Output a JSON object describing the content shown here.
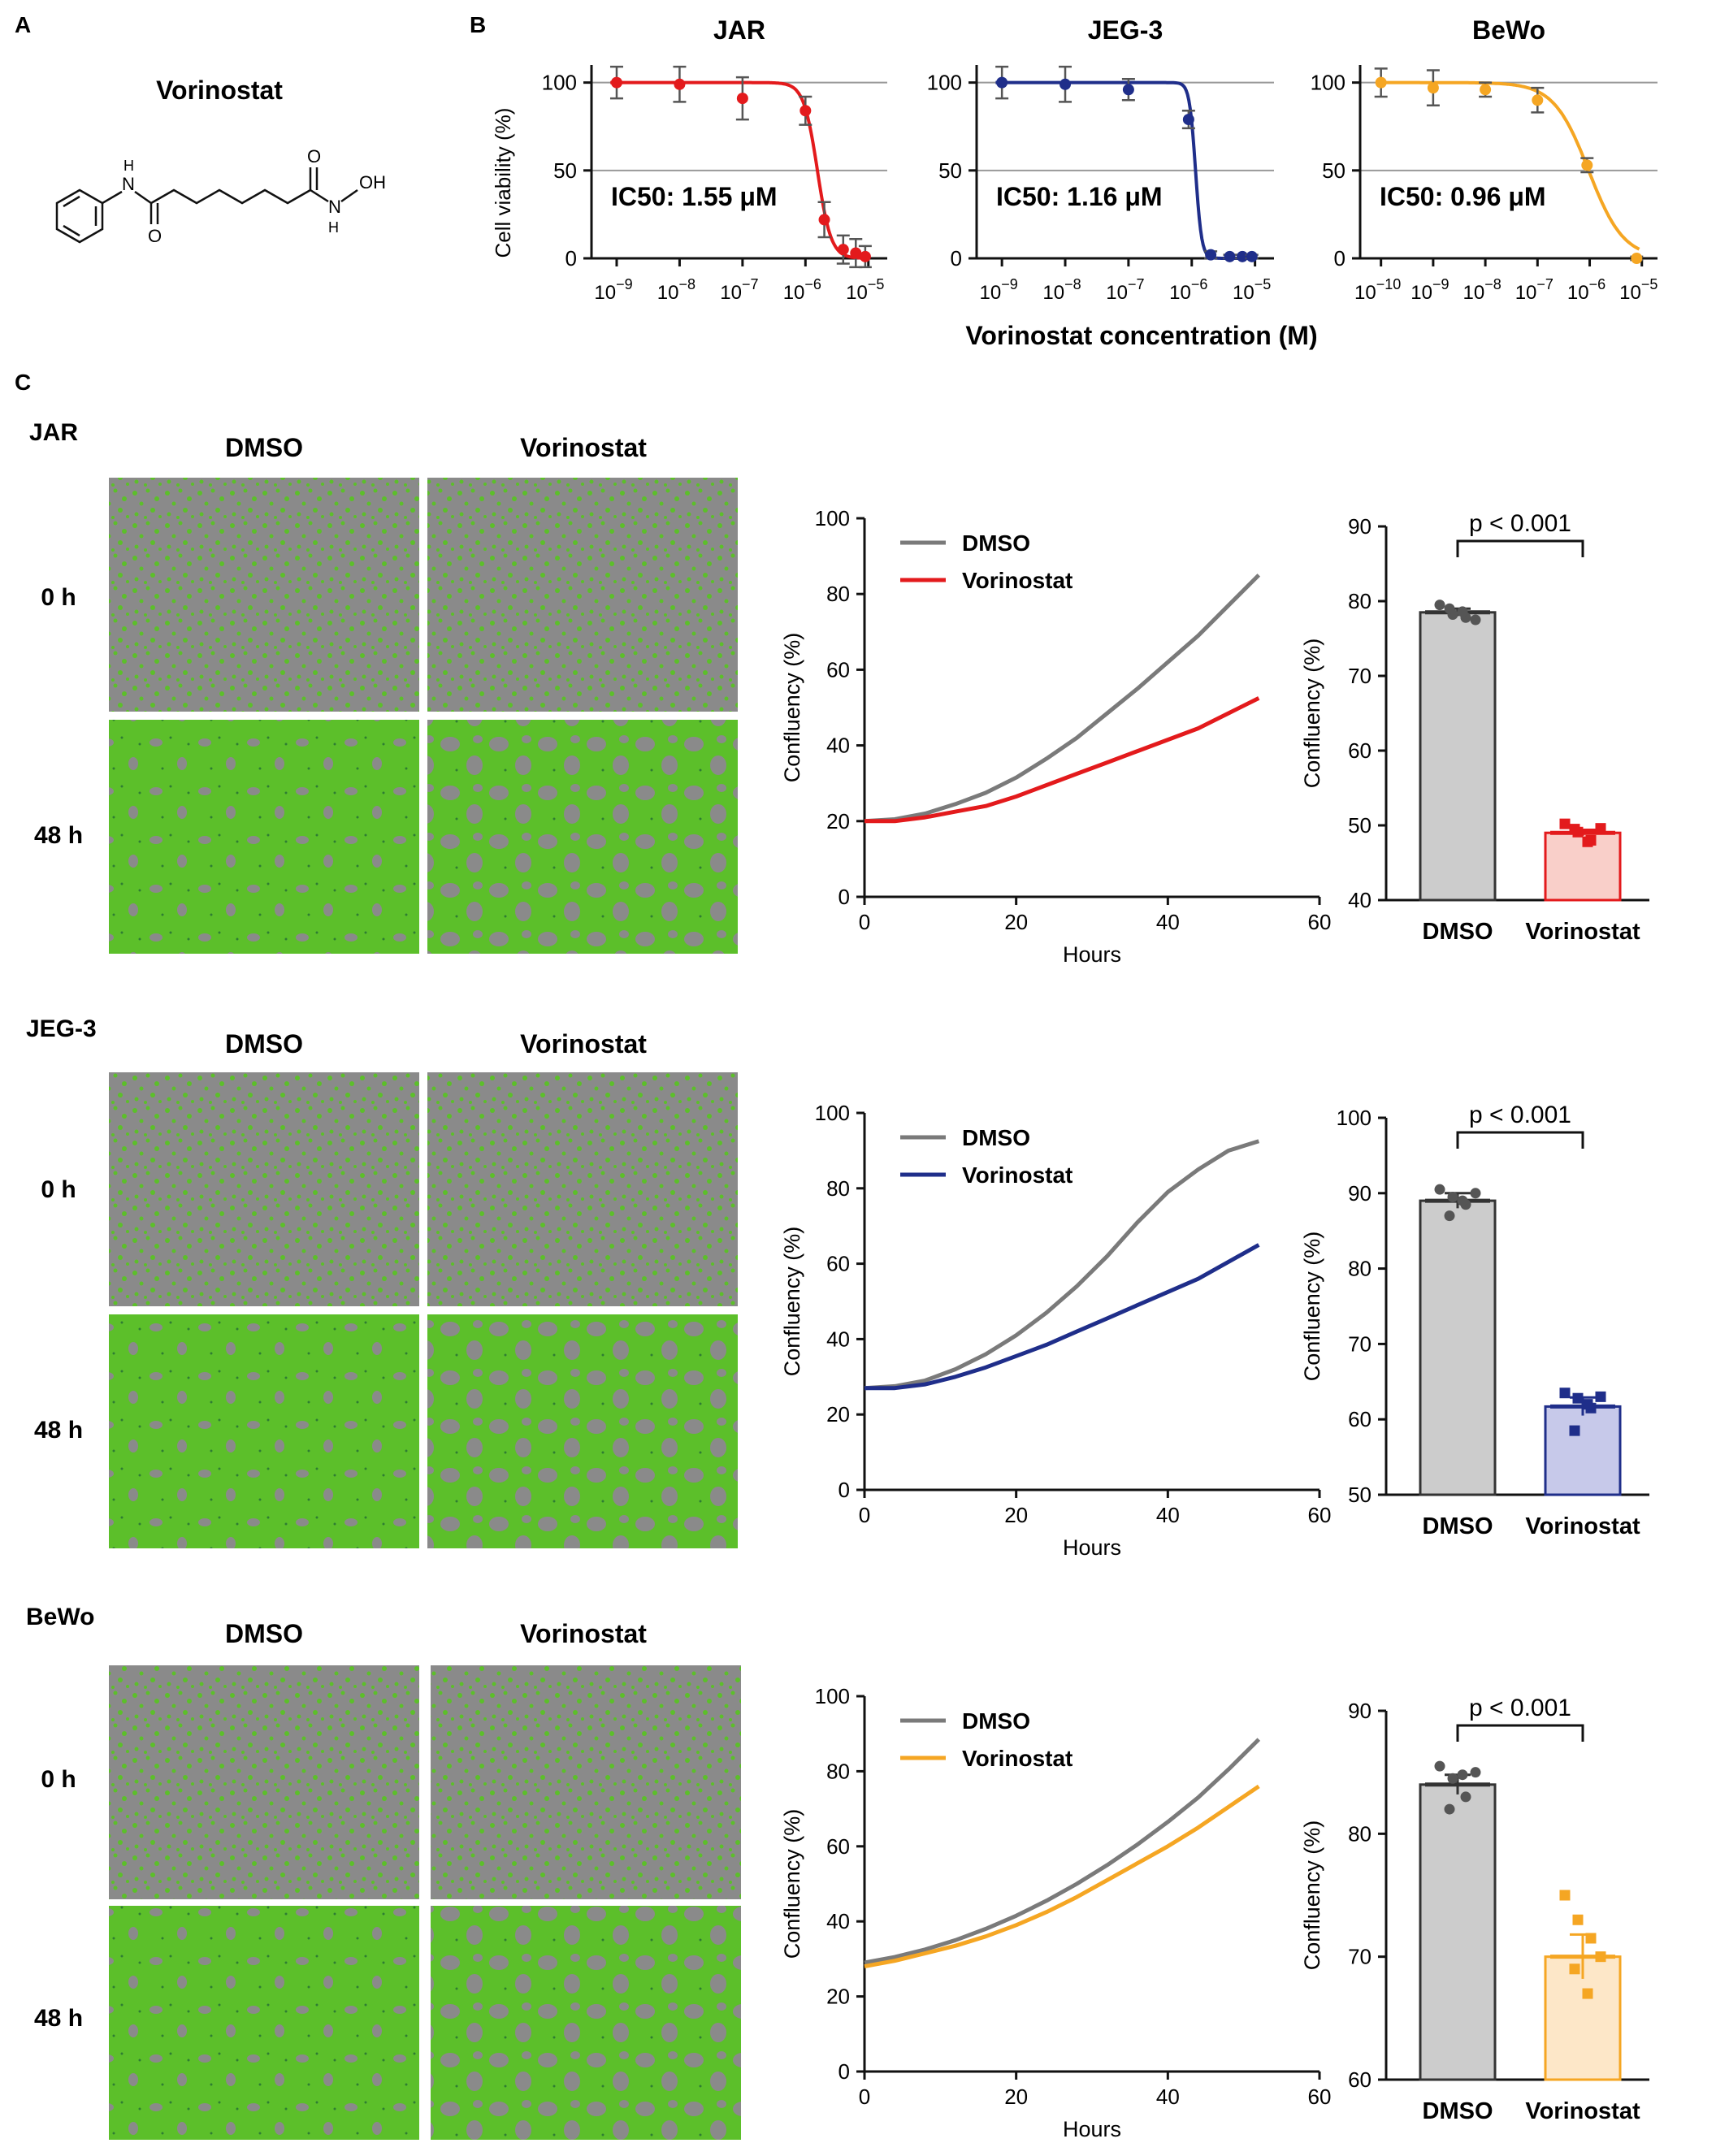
{
  "panels": {
    "a": {
      "letter": "A",
      "title": "Vorinostat",
      "atom_n": "N",
      "atom_h": "H",
      "atom_o1": "O",
      "atom_o2": "O",
      "atom_oh": "OH",
      "atom_n2": "N",
      "atom_h2": "H"
    },
    "b": {
      "letter": "B",
      "ylabel": "Cell viability (%)",
      "xlabel": "Vorinostat concentration (M)"
    },
    "c": {
      "letter": "C",
      "col_dmso": "DMSO",
      "col_vorinostat": "Vorinostat",
      "row_0h": "0 h",
      "row_48h": "48 h"
    }
  },
  "colors": {
    "jar": "#e31a1c",
    "jeg3": "#1f2e8a",
    "bewo": "#f5a623",
    "dmso": "#7a7a7a",
    "green": "#5cbf2a",
    "gray_cells": "#8a8a8a"
  },
  "chart_data": [
    {
      "id": "ic50-jar",
      "type": "scatter",
      "title": "JAR",
      "annotation": "IC50: 1.55 μM",
      "x": [
        -9,
        -8,
        -7,
        -6,
        -5.7,
        -5.4,
        -5.2,
        -5.05
      ],
      "y": [
        100,
        99,
        91,
        84,
        22,
        5,
        3,
        1
      ],
      "err": [
        9,
        10,
        12,
        8,
        10,
        8,
        8,
        6
      ],
      "ic50_log": -5.81,
      "hill": 4,
      "ylim": [
        0,
        110
      ],
      "yticks": [
        0,
        50,
        100
      ],
      "xticks": [
        -9,
        -8,
        -7,
        -6,
        -5
      ],
      "xlim": [
        -9.4,
        -4.7
      ],
      "color": "#e31a1c"
    },
    {
      "id": "ic50-jeg3",
      "type": "scatter",
      "title": "JEG-3",
      "annotation": "IC50: 1.16 μM",
      "x": [
        -9,
        -8,
        -7,
        -6.05,
        -5.7,
        -5.4,
        -5.2,
        -5.05
      ],
      "y": [
        100,
        99,
        96,
        79,
        2,
        1,
        1,
        1
      ],
      "err": [
        9,
        10,
        6,
        5,
        2,
        1,
        1,
        1
      ],
      "ic50_log": -5.94,
      "hill": 9,
      "ylim": [
        0,
        110
      ],
      "yticks": [
        0,
        50,
        100
      ],
      "xticks": [
        -9,
        -8,
        -7,
        -6,
        -5
      ],
      "xlim": [
        -9.4,
        -4.7
      ],
      "color": "#1f2e8a"
    },
    {
      "id": "ic50-bewo",
      "type": "scatter",
      "title": "BeWo",
      "annotation": "IC50: 0.96 μM",
      "x": [
        -10,
        -9,
        -8,
        -7,
        -6.05,
        -5.1
      ],
      "y": [
        100,
        97,
        96,
        90,
        53,
        0
      ],
      "err": [
        8,
        10,
        4,
        7,
        4,
        1
      ],
      "ic50_log": -6.02,
      "hill": 1.3,
      "ylim": [
        0,
        110
      ],
      "yticks": [
        0,
        50,
        100
      ],
      "xticks": [
        -10,
        -9,
        -8,
        -7,
        -6,
        -5
      ],
      "xlim": [
        -10.4,
        -4.7
      ],
      "color": "#f5a623"
    },
    {
      "id": "growth-jar",
      "type": "line",
      "xlabel": "Hours",
      "ylabel": "Confluency (%)",
      "xlim": [
        0,
        60
      ],
      "ylim": [
        0,
        100
      ],
      "xticks": [
        0,
        20,
        40,
        60
      ],
      "yticks": [
        0,
        20,
        40,
        60,
        80,
        100
      ],
      "series": [
        {
          "name": "DMSO",
          "color": "#7a7a7a",
          "x": [
            0,
            4,
            8,
            12,
            16,
            20,
            24,
            28,
            32,
            36,
            40,
            44,
            48,
            52
          ],
          "y": [
            20,
            20.5,
            22,
            24.5,
            27.5,
            31.5,
            36.5,
            42,
            48.5,
            55,
            62,
            69,
            77,
            85
          ]
        },
        {
          "name": "Vorinostat",
          "color": "#e31a1c",
          "x": [
            0,
            4,
            8,
            12,
            16,
            20,
            24,
            28,
            32,
            36,
            40,
            44,
            48,
            52
          ],
          "y": [
            20,
            20,
            21,
            22.5,
            24,
            26.5,
            29.5,
            32.5,
            35.5,
            38.5,
            41.5,
            44.5,
            48.5,
            52.5
          ]
        }
      ]
    },
    {
      "id": "growth-jeg3",
      "type": "line",
      "xlabel": "Hours",
      "ylabel": "Confluency (%)",
      "xlim": [
        0,
        60
      ],
      "ylim": [
        0,
        100
      ],
      "xticks": [
        0,
        20,
        40,
        60
      ],
      "yticks": [
        0,
        20,
        40,
        60,
        80,
        100
      ],
      "series": [
        {
          "name": "DMSO",
          "color": "#7a7a7a",
          "x": [
            0,
            4,
            8,
            12,
            16,
            20,
            24,
            28,
            32,
            36,
            40,
            44,
            48,
            52
          ],
          "y": [
            27,
            27.5,
            29,
            32,
            36,
            41,
            47,
            54,
            62,
            71,
            79,
            85,
            90,
            92.5
          ]
        },
        {
          "name": "Vorinostat",
          "color": "#1f2e8a",
          "x": [
            0,
            4,
            8,
            12,
            16,
            20,
            24,
            28,
            32,
            36,
            40,
            44,
            48,
            52
          ],
          "y": [
            27,
            27,
            28,
            30,
            32.5,
            35.5,
            38.5,
            42,
            45.5,
            49,
            52.5,
            56,
            60.5,
            65
          ]
        }
      ]
    },
    {
      "id": "growth-bewo",
      "type": "line",
      "xlabel": "Hours",
      "ylabel": "Confluency (%)",
      "xlim": [
        0,
        60
      ],
      "ylim": [
        0,
        100
      ],
      "xticks": [
        0,
        20,
        40,
        60
      ],
      "yticks": [
        0,
        20,
        40,
        60,
        80,
        100
      ],
      "series": [
        {
          "name": "DMSO",
          "color": "#7a7a7a",
          "x": [
            0,
            4,
            8,
            12,
            16,
            20,
            24,
            28,
            32,
            36,
            40,
            44,
            48,
            52
          ],
          "y": [
            29,
            30.5,
            32.5,
            35,
            38,
            41.5,
            45.5,
            50,
            55,
            60.5,
            66.5,
            73,
            80.5,
            88.5
          ]
        },
        {
          "name": "Vorinostat",
          "color": "#f5a623",
          "x": [
            0,
            4,
            8,
            12,
            16,
            20,
            24,
            28,
            32,
            36,
            40,
            44,
            48,
            52
          ],
          "y": [
            28,
            29.5,
            31.5,
            33.5,
            36,
            39,
            42.5,
            46.5,
            51,
            55.5,
            60,
            65,
            70.5,
            76
          ]
        }
      ]
    },
    {
      "id": "bar-jar",
      "type": "bar",
      "ylabel": "Confluency (%)",
      "categories": [
        "DMSO",
        "Vorinostat"
      ],
      "values": [
        78.5,
        49
      ],
      "errors": [
        0.5,
        0.4
      ],
      "points": [
        [
          79.5,
          78.2,
          77.8,
          79.0,
          78.6,
          77.5
        ],
        [
          50.2,
          49.1,
          48.0,
          49.5,
          47.8,
          49.6
        ]
      ],
      "ylim": [
        40,
        90
      ],
      "yticks": [
        40,
        50,
        60,
        70,
        80,
        90
      ],
      "pvalue": "p < 0.001",
      "fills": [
        "#cccccc",
        "#f9cfc9"
      ],
      "strokes": [
        "#333333",
        "#e31a1c"
      ],
      "marker": "square"
    },
    {
      "id": "bar-jeg3",
      "type": "bar",
      "ylabel": "Confluency (%)",
      "categories": [
        "DMSO",
        "Vorinostat"
      ],
      "values": [
        89,
        61.7
      ],
      "errors": [
        1.0,
        1.2
      ],
      "points": [
        [
          90.5,
          89.5,
          88.5,
          87.0,
          89.0,
          90.0
        ],
        [
          63.5,
          62.8,
          61.5,
          58.5,
          62.0,
          63.0
        ]
      ],
      "ylim": [
        50,
        100
      ],
      "yticks": [
        50,
        60,
        70,
        80,
        90,
        100
      ],
      "pvalue": "p < 0.001",
      "fills": [
        "#cccccc",
        "#c7c9ea"
      ],
      "strokes": [
        "#333333",
        "#1f2e8a"
      ],
      "marker": "square"
    },
    {
      "id": "bar-bewo",
      "type": "bar",
      "ylabel": "Confluency (%)",
      "categories": [
        "DMSO",
        "Vorinostat"
      ],
      "values": [
        84,
        70
      ],
      "errors": [
        0.8,
        1.8
      ],
      "points": [
        [
          85.5,
          84.5,
          83.0,
          82.0,
          84.8,
          85.0
        ],
        [
          75.0,
          73.0,
          71.5,
          69.0,
          67.0,
          70.0
        ]
      ],
      "ylim": [
        60,
        90
      ],
      "yticks": [
        60,
        70,
        80,
        90
      ],
      "pvalue": "p < 0.001",
      "fills": [
        "#cccccc",
        "#fde7c8"
      ],
      "strokes": [
        "#333333",
        "#f5a623"
      ],
      "marker": "square"
    }
  ],
  "rows": [
    {
      "cell_line": "JAR"
    },
    {
      "cell_line": "JEG-3"
    },
    {
      "cell_line": "BeWo"
    }
  ]
}
